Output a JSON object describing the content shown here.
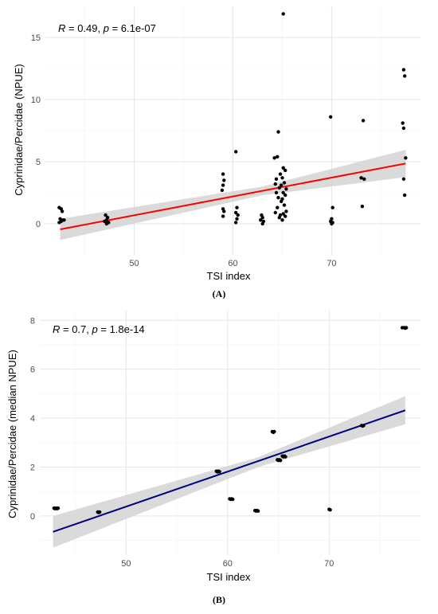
{
  "chart_data": [
    {
      "type": "scatter",
      "panel_label": "(A)",
      "xlabel": "TSI index",
      "ylabel": "Cyprinidae/Percidae (NPUE)",
      "annotation": {
        "r_label": "R",
        "r_text": " = 0.49, ",
        "p_label": "p",
        "p_text": " = 6.1e-07"
      },
      "xlim": [
        41,
        79
      ],
      "ylim": [
        -2.5,
        17.5
      ],
      "xticks": [
        50,
        60,
        70
      ],
      "yticks": [
        0,
        5,
        10,
        15
      ],
      "xtick_labels": [
        "50",
        "60",
        "70"
      ],
      "ytick_labels": [
        "0",
        "5",
        "10",
        "15"
      ],
      "grid": true,
      "colors": {
        "line": "#ff0000",
        "band": "#d3d3d3",
        "point": "#000000"
      },
      "fit": {
        "x": [
          42.5,
          77.5
        ],
        "y": [
          -0.45,
          4.85
        ],
        "ci_low": [
          -1.3,
          3.75
        ],
        "ci_high": [
          0.4,
          5.95
        ],
        "x_mid": 63,
        "ci_mid": [
          2.3,
          3.0
        ]
      },
      "points": [
        [
          42.4,
          1.3
        ],
        [
          42.6,
          1.2
        ],
        [
          42.7,
          1.0
        ],
        [
          42.5,
          0.4
        ],
        [
          42.8,
          0.3
        ],
        [
          42.6,
          0.2
        ],
        [
          42.4,
          0.1
        ],
        [
          42.9,
          0.3
        ],
        [
          47.1,
          0.7
        ],
        [
          47.3,
          0.5
        ],
        [
          47.2,
          0.3
        ],
        [
          47.0,
          0.2
        ],
        [
          47.4,
          0.1
        ],
        [
          47.2,
          0.0
        ],
        [
          59.0,
          4.0
        ],
        [
          59.1,
          3.5
        ],
        [
          59.0,
          3.1
        ],
        [
          58.9,
          2.7
        ],
        [
          59.0,
          1.2
        ],
        [
          59.1,
          1.0
        ],
        [
          59.0,
          0.6
        ],
        [
          60.3,
          5.8
        ],
        [
          60.4,
          1.3
        ],
        [
          60.3,
          0.9
        ],
        [
          60.5,
          0.7
        ],
        [
          60.4,
          0.4
        ],
        [
          60.3,
          0.1
        ],
        [
          62.9,
          0.7
        ],
        [
          63.0,
          0.5
        ],
        [
          62.8,
          0.3
        ],
        [
          63.1,
          0.2
        ],
        [
          63.0,
          0.0
        ],
        [
          64.2,
          5.3
        ],
        [
          64.5,
          5.4
        ],
        [
          64.6,
          7.4
        ],
        [
          64.8,
          4.0
        ],
        [
          64.3,
          3.2
        ],
        [
          64.7,
          2.9
        ],
        [
          64.4,
          2.5
        ],
        [
          64.6,
          2.1
        ],
        [
          64.9,
          1.8
        ],
        [
          64.5,
          1.3
        ],
        [
          64.3,
          0.9
        ],
        [
          64.8,
          0.7
        ],
        [
          64.7,
          0.5
        ],
        [
          64.4,
          3.6
        ],
        [
          64.9,
          3.1
        ],
        [
          65.1,
          16.9
        ],
        [
          65.1,
          4.5
        ],
        [
          65.3,
          4.3
        ],
        [
          65.0,
          3.7
        ],
        [
          65.2,
          3.3
        ],
        [
          65.4,
          2.8
        ],
        [
          65.1,
          2.5
        ],
        [
          65.3,
          2.3
        ],
        [
          65.0,
          2.0
        ],
        [
          65.2,
          1.5
        ],
        [
          65.4,
          1.0
        ],
        [
          65.1,
          0.8
        ],
        [
          65.3,
          0.6
        ],
        [
          65.0,
          0.3
        ],
        [
          69.9,
          8.6
        ],
        [
          70.1,
          1.3
        ],
        [
          70.0,
          0.4
        ],
        [
          69.9,
          0.2
        ],
        [
          70.1,
          0.1
        ],
        [
          70.0,
          0.0
        ],
        [
          73.2,
          8.3
        ],
        [
          73.0,
          3.7
        ],
        [
          73.3,
          3.6
        ],
        [
          73.1,
          1.4
        ],
        [
          77.3,
          12.4
        ],
        [
          77.4,
          11.9
        ],
        [
          77.2,
          8.1
        ],
        [
          77.3,
          7.7
        ],
        [
          77.5,
          5.3
        ],
        [
          77.3,
          3.6
        ],
        [
          77.4,
          2.3
        ]
      ]
    },
    {
      "type": "scatter",
      "panel_label": "(B)",
      "xlabel": "TSI index",
      "ylabel": "Cyprinidae/Percidae (median NPUE)",
      "annotation": {
        "r_label": "R",
        "r_text": " = 0.7, ",
        "p_label": "p",
        "p_text": " = 1.8e-14"
      },
      "xlim": [
        41.5,
        79
      ],
      "ylim": [
        -1.6,
        8.4
      ],
      "xticks": [
        50,
        60,
        70
      ],
      "yticks": [
        0,
        2,
        4,
        6,
        8
      ],
      "xtick_labels": [
        "50",
        "60",
        "70"
      ],
      "ytick_labels": [
        "0",
        "2",
        "4",
        "6",
        "8"
      ],
      "grid": true,
      "colors": {
        "line": "#000080",
        "band": "#d3d3d3",
        "point": "#000000"
      },
      "fit": {
        "x": [
          42.8,
          77.5
        ],
        "y": [
          -0.65,
          4.32
        ],
        "ci_low": [
          -1.3,
          3.75
        ],
        "ci_high": [
          0.0,
          4.9
        ],
        "x_mid": 63,
        "ci_mid": [
          2.0,
          2.4
        ]
      },
      "points": [
        [
          42.9,
          0.32
        ],
        [
          43.1,
          0.32
        ],
        [
          43.3,
          0.32
        ],
        [
          43.0,
          0.3
        ],
        [
          43.2,
          0.3
        ],
        [
          47.2,
          0.16
        ],
        [
          47.4,
          0.16
        ],
        [
          47.3,
          0.14
        ],
        [
          58.9,
          1.83
        ],
        [
          59.1,
          1.83
        ],
        [
          59.2,
          1.81
        ],
        [
          59.0,
          1.8
        ],
        [
          60.2,
          0.7
        ],
        [
          60.4,
          0.7
        ],
        [
          60.5,
          0.68
        ],
        [
          60.3,
          0.68
        ],
        [
          62.7,
          0.22
        ],
        [
          62.9,
          0.22
        ],
        [
          63.0,
          0.2
        ],
        [
          62.8,
          0.2
        ],
        [
          64.4,
          3.45
        ],
        [
          64.6,
          3.45
        ],
        [
          64.5,
          3.42
        ],
        [
          64.9,
          2.3
        ],
        [
          65.1,
          2.3
        ],
        [
          65.0,
          2.27
        ],
        [
          65.2,
          2.27
        ],
        [
          65.4,
          2.45
        ],
        [
          65.6,
          2.45
        ],
        [
          65.5,
          2.42
        ],
        [
          65.7,
          2.42
        ],
        [
          70.0,
          0.27
        ],
        [
          70.1,
          0.25
        ],
        [
          73.2,
          3.7
        ],
        [
          73.4,
          3.7
        ],
        [
          73.3,
          3.68
        ],
        [
          77.2,
          7.7
        ],
        [
          77.4,
          7.7
        ],
        [
          77.6,
          7.7
        ],
        [
          77.5,
          7.68
        ]
      ]
    }
  ]
}
